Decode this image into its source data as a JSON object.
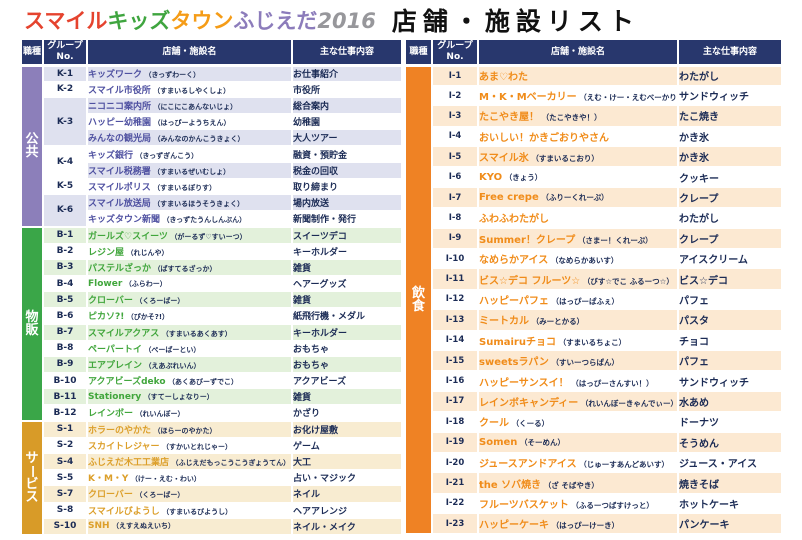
{
  "title": {
    "logo_segments": [
      {
        "text": "スマイル",
        "color": "#e5432e"
      },
      {
        "text": "キッズ",
        "color": "#3fa53f"
      },
      {
        "text": "タウン",
        "color": "#f59c17"
      },
      {
        "text": "ふじえだ",
        "color": "#8c7cbb"
      },
      {
        "text": "2016",
        "color": "#97979b"
      }
    ],
    "heading": "店舗・施設リスト"
  },
  "columns": {
    "job": "職種",
    "group_line1": "グループ",
    "group_line2": "No.",
    "name": "店舗・施設名",
    "work": "主な仕事内容"
  },
  "header_bg": "#28376d",
  "tables": [
    {
      "id": "left",
      "sections": [
        {
          "label": "公共",
          "color": "#8c7fba",
          "shade": "#dfe1ef",
          "name_color": "#4f51a1",
          "rows": [
            {
              "no": "K-1",
              "span": 1,
              "name": "キッズワーク",
              "reading": "（きっずわーく）",
              "work": "お仕事紹介"
            },
            {
              "no": "K-2",
              "span": 1,
              "name": "スマイル市役所",
              "reading": "（すまいるしやくしょ）",
              "work": "市役所"
            },
            {
              "no": "K-3",
              "span": 3,
              "name": "ニコニコ案内所",
              "reading": "（にこにこあんないじょ）",
              "work": "総合案内"
            },
            {
              "no": "",
              "span": 0,
              "name": "ハッピー幼稚園",
              "reading": "（はっぴーようちえん）",
              "work": "幼稚園"
            },
            {
              "no": "",
              "span": 0,
              "name": "みんなの観光局",
              "reading": "（みんなのかんこうきょく）",
              "work": "大人ツアー"
            },
            {
              "no": "K-4",
              "span": 2,
              "name": "キッズ銀行",
              "reading": "（きっずぎんこう）",
              "work": "融資・預貯金"
            },
            {
              "no": "",
              "span": 0,
              "name": "スマイル税務署",
              "reading": "（すまいるぜいむしょ）",
              "work": "税金の回収"
            },
            {
              "no": "K-5",
              "span": 1,
              "name": "スマイルポリス",
              "reading": "（すまいるぽりす）",
              "work": "取り締まり"
            },
            {
              "no": "K-6",
              "span": 2,
              "name": "スマイル放送局",
              "reading": "（すまいるほうそうきょく）",
              "work": "場内放送"
            },
            {
              "no": "",
              "span": 0,
              "name": "キッズタウン新聞",
              "reading": "（きっずたうんしんぶん）",
              "work": "新聞制作・発行"
            }
          ]
        },
        {
          "label": "物販",
          "color": "#3aa648",
          "shade": "#e3f1db",
          "name_color": "#41a63c",
          "rows": [
            {
              "no": "B-1",
              "span": 1,
              "name": "ガールズ♡スイーツ",
              "reading": "（がーるず♡すいーつ）",
              "work": "スイーツデコ"
            },
            {
              "no": "B-2",
              "span": 1,
              "name": "レジン屋",
              "reading": "（れじんや）",
              "work": "キーホルダー"
            },
            {
              "no": "B-3",
              "span": 1,
              "name": "パステルざっか",
              "reading": "（ぱすてるざっか）",
              "work": "雑貨"
            },
            {
              "no": "B-4",
              "span": 1,
              "name": "Flower",
              "reading": "（ふらわー）",
              "work": "ヘアーグッズ"
            },
            {
              "no": "B-5",
              "span": 1,
              "name": "クローバー",
              "reading": "（くろーばー）",
              "work": "雑貨"
            },
            {
              "no": "B-6",
              "span": 1,
              "name": "ピカソ?!",
              "reading": "（ぴかそ?!）",
              "work": "紙飛行機・メダル"
            },
            {
              "no": "B-7",
              "span": 1,
              "name": "スマイルアクアス",
              "reading": "（すまいるあくあす）",
              "work": "キーホルダー"
            },
            {
              "no": "B-8",
              "span": 1,
              "name": "ペーパートイ",
              "reading": "（ぺーぱーとい）",
              "work": "おもちゃ"
            },
            {
              "no": "B-9",
              "span": 1,
              "name": "エアプレイン",
              "reading": "（えあぷれいん）",
              "work": "おもちゃ"
            },
            {
              "no": "B-10",
              "span": 1,
              "name": "アクアビーズdeko",
              "reading": "（あくあびーずでこ）",
              "work": "アクアビーズ"
            },
            {
              "no": "B-11",
              "span": 1,
              "name": "Stationery",
              "reading": "（すてーしょなりー）",
              "work": "雑貨"
            },
            {
              "no": "B-12",
              "span": 1,
              "name": "レインボー",
              "reading": "（れいんぼー）",
              "work": "かざり"
            }
          ]
        },
        {
          "label": "サービス",
          "color": "#d89b28",
          "shade": "#f8ecd1",
          "name_color": "#dc9f2a",
          "rows": [
            {
              "no": "S-1",
              "span": 1,
              "name": "ホラーのやかた",
              "reading": "（ほらーのやかた）",
              "work": "お化け屋敷"
            },
            {
              "no": "S-2",
              "span": 1,
              "name": "スカイトレジャー",
              "reading": "（すかいとれじゃー）",
              "work": "ゲーム"
            },
            {
              "no": "S-4",
              "span": 1,
              "name": "ふじえだ木工工業店",
              "reading": "（ふじえだもっこうこうぎょうてん）",
              "work": "大工"
            },
            {
              "no": "S-5",
              "span": 1,
              "name": "K・M・Y",
              "reading": "（けー・えむ・わい）",
              "work": "占い・マジック"
            },
            {
              "no": "S-7",
              "span": 1,
              "name": "クローバー",
              "reading": "（くろーばー）",
              "work": "ネイル"
            },
            {
              "no": "S-8",
              "span": 1,
              "name": "スマイルびようし",
              "reading": "（すまいるびようし）",
              "work": "ヘアアレンジ"
            },
            {
              "no": "S-10",
              "span": 1,
              "name": "SNH",
              "reading": "（えすえぬえいち）",
              "work": "ネイル・メイク"
            }
          ]
        }
      ]
    },
    {
      "id": "right",
      "sections": [
        {
          "label": "飲食",
          "color": "#ef8224",
          "shade": "#fce9d2",
          "name_color": "#f08c1a",
          "rows": [
            {
              "no": "I-1",
              "span": 1,
              "name": "あま♡わた",
              "reading": "",
              "work": "わたがし"
            },
            {
              "no": "I-2",
              "span": 1,
              "name": "M・K・Mベーカリー",
              "reading": "（えむ・けー・えむべーかりー）",
              "work": "サンドウィッチ"
            },
            {
              "no": "I-3",
              "span": 1,
              "name": "たこやき屋！",
              "reading": "（たこやきや！）",
              "work": "たこ焼き"
            },
            {
              "no": "I-4",
              "span": 1,
              "name": "おいしい！かきごおりやさん",
              "reading": "",
              "work": "かき氷"
            },
            {
              "no": "I-5",
              "span": 1,
              "name": "スマイル氷",
              "reading": "（すまいるこおり）",
              "work": "かき氷"
            },
            {
              "no": "I-6",
              "span": 1,
              "name": "KYO",
              "reading": "（きょう）",
              "work": "クッキー"
            },
            {
              "no": "I-7",
              "span": 1,
              "name": "Free crepe",
              "reading": "（ふりーくれーぷ）",
              "work": "クレープ"
            },
            {
              "no": "I-8",
              "span": 1,
              "name": "ふわふわたがし",
              "reading": "",
              "work": "わたがし"
            },
            {
              "no": "I-9",
              "span": 1,
              "name": "Summer！クレープ",
              "reading": "（さまー！くれーぷ）",
              "work": "クレープ"
            },
            {
              "no": "I-10",
              "span": 1,
              "name": "なめらかアイス",
              "reading": "（なめらかあいす）",
              "work": "アイスクリーム"
            },
            {
              "no": "I-11",
              "span": 1,
              "name": "ビス☆デコ フルーツ☆",
              "reading": "（びす☆でこ ふるーつ☆）",
              "work": "ビス☆デコ"
            },
            {
              "no": "I-12",
              "span": 1,
              "name": "ハッピーパフェ",
              "reading": "（はっぴーぱふぇ）",
              "work": "パフェ"
            },
            {
              "no": "I-13",
              "span": 1,
              "name": "ミートカル",
              "reading": "（みーとかる）",
              "work": "パスタ"
            },
            {
              "no": "I-14",
              "span": 1,
              "name": "Sumairuチョコ",
              "reading": "（すまいるちょこ）",
              "work": "チョコ"
            },
            {
              "no": "I-15",
              "span": 1,
              "name": "sweetsラパン",
              "reading": "（すいーつらぱん）",
              "work": "パフェ"
            },
            {
              "no": "I-16",
              "span": 1,
              "name": "ハッピーサンスイ！",
              "reading": "（はっぴーさんすい！）",
              "work": "サンドウィッチ"
            },
            {
              "no": "I-17",
              "span": 1,
              "name": "レインボキャンディー",
              "reading": "（れいんぼーきゃんでぃー）",
              "work": "水あめ"
            },
            {
              "no": "I-18",
              "span": 1,
              "name": "クール",
              "reading": "（くーる）",
              "work": "ドーナツ"
            },
            {
              "no": "I-19",
              "span": 1,
              "name": "Somen",
              "reading": "（そーめん）",
              "work": "そうめん"
            },
            {
              "no": "I-20",
              "span": 1,
              "name": "ジュースアンドアイス",
              "reading": "（じゅーすあんどあいす）",
              "work": "ジュース・アイス"
            },
            {
              "no": "I-21",
              "span": 1,
              "name": "the ソバ焼き",
              "reading": "（ざ そばやき）",
              "work": "焼きそば"
            },
            {
              "no": "I-22",
              "span": 1,
              "name": "フルーツバスケット",
              "reading": "（ふるーつばすけっと）",
              "work": "ホットケーキ"
            },
            {
              "no": "I-23",
              "span": 1,
              "name": "ハッピーケーキ",
              "reading": "（はっぴーけーき）",
              "work": "パンケーキ"
            }
          ]
        }
      ]
    }
  ]
}
